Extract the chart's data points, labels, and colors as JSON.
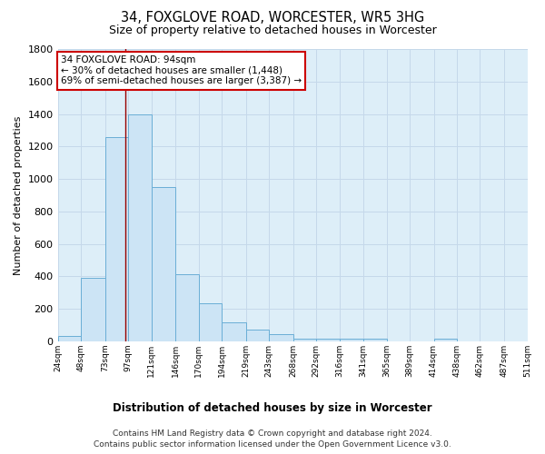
{
  "title1": "34, FOXGLOVE ROAD, WORCESTER, WR5 3HG",
  "title2": "Size of property relative to detached houses in Worcester",
  "xlabel": "Distribution of detached houses by size in Worcester",
  "ylabel": "Number of detached properties",
  "footnote1": "Contains HM Land Registry data © Crown copyright and database right 2024.",
  "footnote2": "Contains public sector information licensed under the Open Government Licence v3.0.",
  "bar_left_edges": [
    24,
    48,
    73,
    97,
    121,
    146,
    170,
    194,
    219,
    243,
    268,
    292,
    316,
    341,
    365,
    389,
    414,
    438,
    462,
    487
  ],
  "bar_heights": [
    35,
    390,
    1260,
    1395,
    950,
    413,
    235,
    118,
    72,
    45,
    18,
    18,
    18,
    18,
    0,
    0,
    18,
    0,
    0,
    0
  ],
  "bar_color": "#cce4f5",
  "bar_edgecolor": "#6aaed6",
  "grid_color": "#c5d8ea",
  "background_color": "#ddeef8",
  "property_sqm": 94,
  "vline_color": "#990000",
  "annotation_text": "34 FOXGLOVE ROAD: 94sqm\n← 30% of detached houses are smaller (1,448)\n69% of semi-detached houses are larger (3,387) →",
  "annotation_box_color": "#ffffff",
  "annotation_box_edgecolor": "#cc0000",
  "xlim_min": 24,
  "xlim_max": 511,
  "ylim_min": 0,
  "ylim_max": 1800,
  "ytick_vals": [
    0,
    200,
    400,
    600,
    800,
    1000,
    1200,
    1400,
    1600,
    1800
  ],
  "xtick_labels": [
    "24sqm",
    "48sqm",
    "73sqm",
    "97sqm",
    "121sqm",
    "146sqm",
    "170sqm",
    "194sqm",
    "219sqm",
    "243sqm",
    "268sqm",
    "292sqm",
    "316sqm",
    "341sqm",
    "365sqm",
    "389sqm",
    "414sqm",
    "438sqm",
    "462sqm",
    "487sqm",
    "511sqm"
  ],
  "xtick_positions": [
    24,
    48,
    73,
    97,
    121,
    146,
    170,
    194,
    219,
    243,
    268,
    292,
    316,
    341,
    365,
    389,
    414,
    438,
    462,
    487,
    511
  ]
}
